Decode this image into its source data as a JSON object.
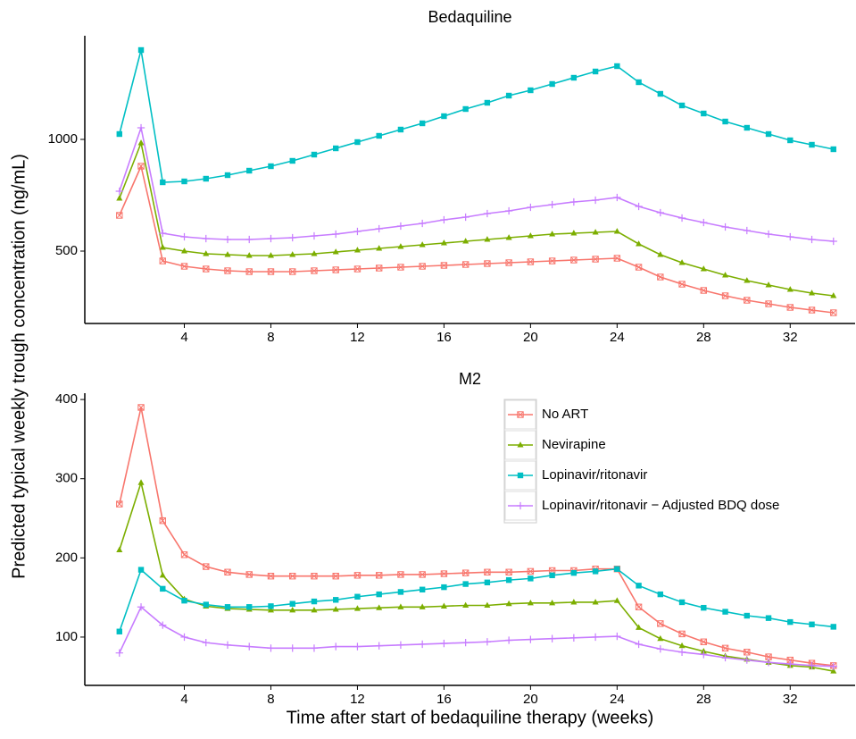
{
  "chart_data": [
    {
      "type": "line",
      "title": "Bedaquiline",
      "ylabel": "Predicted typical weekly trough concentration (ng/mL)",
      "x": [
        1,
        2,
        3,
        4,
        5,
        6,
        7,
        8,
        9,
        10,
        11,
        12,
        13,
        14,
        15,
        16,
        17,
        18,
        19,
        20,
        21,
        22,
        23,
        24,
        25,
        26,
        27,
        28,
        29,
        30,
        31,
        32,
        33,
        34
      ],
      "xlim": [
        -0.6,
        35.0
      ],
      "xticks": [
        4,
        8,
        12,
        16,
        20,
        24,
        28,
        32
      ],
      "ylim": [
        176,
        1464
      ],
      "yticks": [
        500,
        1000
      ],
      "series": [
        {
          "name": "No ART",
          "color": "#F8766D",
          "marker": "square-x",
          "values": [
            660,
            880,
            456,
            432,
            420,
            412,
            408,
            408,
            408,
            412,
            416,
            420,
            424,
            428,
            432,
            436,
            440,
            444,
            448,
            452,
            456,
            460,
            464,
            468,
            428,
            384,
            352,
            324,
            300,
            280,
            264,
            248,
            236,
            224
          ]
        },
        {
          "name": "Nevirapine",
          "color": "#7CAE00",
          "marker": "triangle",
          "values": [
            736,
            984,
            516,
            500,
            488,
            484,
            480,
            480,
            484,
            488,
            496,
            504,
            512,
            520,
            528,
            536,
            544,
            552,
            560,
            568,
            576,
            580,
            584,
            588,
            532,
            484,
            448,
            420,
            392,
            368,
            348,
            328,
            312,
            300
          ]
        },
        {
          "name": "Lopinavir/ritonavir",
          "color": "#00BFC4",
          "marker": "square",
          "values": [
            1024,
            1400,
            808,
            812,
            824,
            840,
            860,
            880,
            904,
            932,
            960,
            988,
            1016,
            1044,
            1072,
            1104,
            1136,
            1164,
            1196,
            1220,
            1248,
            1276,
            1304,
            1328,
            1256,
            1204,
            1152,
            1116,
            1080,
            1052,
            1024,
            996,
            976,
            956
          ]
        },
        {
          "name": "Lopinavir/ritonavir − Adjusted BDQ dose",
          "color": "#C77CFF",
          "marker": "plus",
          "values": [
            768,
            1052,
            580,
            564,
            556,
            552,
            552,
            556,
            560,
            568,
            576,
            588,
            600,
            612,
            624,
            640,
            652,
            668,
            680,
            696,
            708,
            720,
            728,
            740,
            700,
            672,
            648,
            628,
            608,
            592,
            576,
            564,
            552,
            544
          ]
        }
      ]
    },
    {
      "type": "line",
      "title": "M2",
      "xlabel": "Time after start of bedaquiline therapy (weeks)",
      "x": [
        1,
        2,
        3,
        4,
        5,
        6,
        7,
        8,
        9,
        10,
        11,
        12,
        13,
        14,
        15,
        16,
        17,
        18,
        19,
        20,
        21,
        22,
        23,
        24,
        25,
        26,
        27,
        28,
        29,
        30,
        31,
        32,
        33,
        34
      ],
      "xlim": [
        -0.6,
        35.0
      ],
      "xticks": [
        4,
        8,
        12,
        16,
        20,
        24,
        28,
        32
      ],
      "ylim": [
        39,
        408
      ],
      "yticks": [
        100,
        200,
        300,
        400
      ],
      "legend": "upper-right",
      "series": [
        {
          "name": "No ART",
          "color": "#F8766D",
          "marker": "square-x",
          "values": [
            268,
            390,
            247,
            204,
            189,
            182,
            179,
            177,
            177,
            177,
            177,
            178,
            178,
            179,
            179,
            180,
            181,
            182,
            182,
            183,
            184,
            184,
            186,
            186,
            138,
            117,
            104,
            94,
            86,
            81,
            75,
            71,
            67,
            64
          ]
        },
        {
          "name": "Nevirapine",
          "color": "#7CAE00",
          "marker": "triangle",
          "values": [
            210,
            295,
            178,
            148,
            139,
            136,
            135,
            134,
            134,
            134,
            135,
            136,
            137,
            138,
            138,
            139,
            140,
            140,
            142,
            143,
            143,
            144,
            144,
            146,
            112,
            98,
            89,
            82,
            76,
            72,
            68,
            64,
            62,
            57
          ]
        },
        {
          "name": "Lopinavir/ritonavir",
          "color": "#00BFC4",
          "marker": "square",
          "values": [
            107,
            185,
            161,
            146,
            141,
            138,
            138,
            139,
            142,
            145,
            147,
            151,
            154,
            157,
            160,
            163,
            167,
            169,
            172,
            174,
            178,
            181,
            183,
            186,
            165,
            154,
            144,
            137,
            132,
            127,
            124,
            119,
            116,
            113
          ]
        },
        {
          "name": "Lopinavir/ritonavir − Adjusted BDQ dose",
          "color": "#C77CFF",
          "marker": "plus",
          "values": [
            80,
            138,
            115,
            100,
            93,
            90,
            88,
            86,
            86,
            86,
            88,
            88,
            89,
            90,
            91,
            92,
            93,
            94,
            96,
            97,
            98,
            99,
            100,
            101,
            91,
            85,
            81,
            78,
            74,
            71,
            68,
            66,
            64,
            63
          ]
        }
      ]
    }
  ]
}
